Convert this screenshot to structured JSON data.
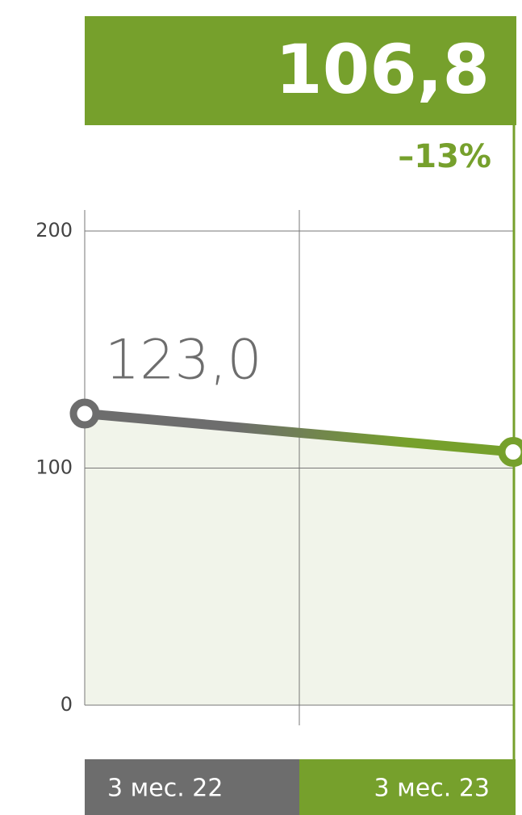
{
  "chart_data": {
    "type": "line",
    "categories": [
      "3 мес. 22",
      "3 мес. 23"
    ],
    "values": [
      123.0,
      106.8
    ],
    "value_labels": [
      "123,0",
      "106,8"
    ],
    "annotation": "–13%",
    "colors": [
      "#6d6d6d",
      "#76a02c"
    ],
    "ylim": [
      0,
      200
    ],
    "yticks": [
      0,
      100,
      200
    ],
    "grid": true
  }
}
